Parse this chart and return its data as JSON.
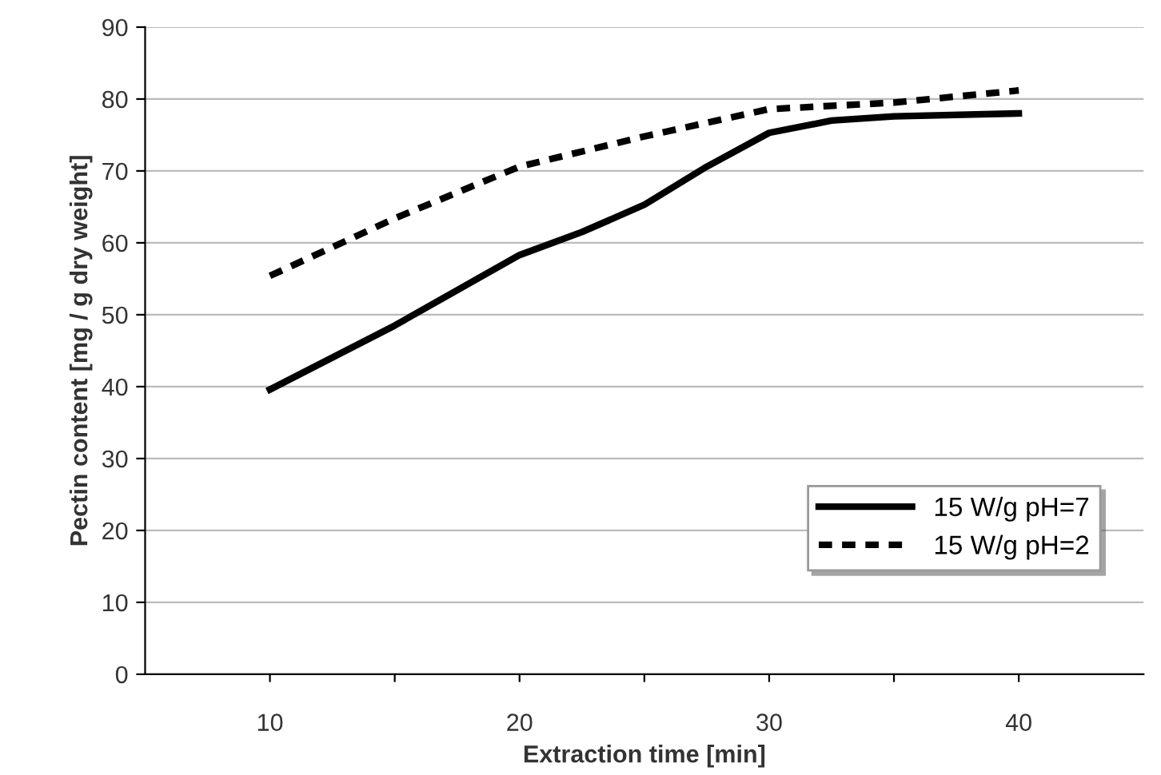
{
  "chart_data": {
    "type": "line",
    "xlabel": "Extraction time [min]",
    "ylabel": "Pectin content [mg / g dry weight]",
    "series": [
      {
        "name": "15 W/g pH=7",
        "color": "#000000",
        "line_style": "solid",
        "x": [
          10,
          15,
          20,
          22.5,
          25,
          27.5,
          30,
          32.5,
          35,
          40
        ],
        "values": [
          39.6,
          48.5,
          58.3,
          61.5,
          65.3,
          70.6,
          75.3,
          77.0,
          77.6,
          78.0
        ]
      },
      {
        "name": "15 W/g pH=2",
        "color": "#000000",
        "line_style": "dashed",
        "x": [
          10,
          15,
          20,
          25,
          30,
          35,
          40
        ],
        "values": [
          55.4,
          63.4,
          70.6,
          74.8,
          78.6,
          79.5,
          81.2
        ]
      }
    ],
    "xlim": [
      5,
      45
    ],
    "xticks": [
      10,
      {
        "value": 15,
        "label": null
      },
      20,
      {
        "value": 25,
        "label": null
      },
      30,
      {
        "value": 35,
        "label": null
      },
      40
    ],
    "ylim": [
      0,
      90
    ],
    "yticks": [
      0,
      10,
      20,
      30,
      40,
      50,
      60,
      70,
      80,
      90
    ],
    "grid": "y",
    "legend": "bottom right",
    "marker": "none"
  }
}
